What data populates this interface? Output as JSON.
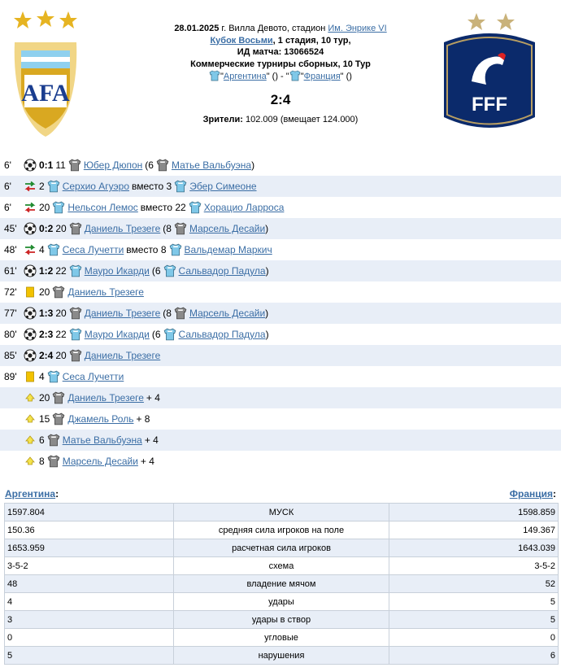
{
  "header": {
    "date": "28.01.2025",
    "venue_prefix": " г. Вилла Девото, стадион ",
    "stadium": "Им. Энрике VI",
    "tournament": "Кубок Восьми",
    "stage": ", 1 стадия, 10 тур,",
    "match_id": "ИД матча: 13066524",
    "series": "Коммерческие турниры сборных, 10 Тур",
    "home_team": "Аргентина",
    "away_team": "Франция",
    "home_suffix": "\" () - \"",
    "away_suffix": "\" ()",
    "quote": "\"",
    "score": "2:4",
    "spectators_label": "Зрители:",
    "spectators_value": " 102.009 (вмещает 124.000)"
  },
  "colors": {
    "link": "#3b6ea5",
    "row_shade": "#e8eef7",
    "home_shirt": "#7fc8e8",
    "away_shirt": "#8a8a8a"
  },
  "events": [
    {
      "min": "6'",
      "icon": "ball-icon",
      "score": "0:1",
      "num": "11",
      "player": "Юбер Дюпон",
      "extra": "(6",
      "assist": "Матье Вальбуэна",
      "close": ")"
    },
    {
      "min": "6'",
      "icon": "substitution-icon",
      "num": "2",
      "player": "Серхио Агуэро",
      "extra": "вместо 3",
      "assist": "Эбер Симеоне"
    },
    {
      "min": "6'",
      "icon": "substitution-icon",
      "num": "20",
      "player": "Нельсон Лемос",
      "extra": "вместо 22",
      "assist": "Хорацио Ларроса"
    },
    {
      "min": "45'",
      "icon": "ball-icon",
      "score": "0:2",
      "num": "20",
      "player": "Даниель Трезеге",
      "extra": "(8",
      "assist": "Марсель Десайи",
      "close": ")"
    },
    {
      "min": "48'",
      "icon": "substitution-icon",
      "num": "4",
      "player": "Сеса Лучетти",
      "extra": "вместо 8",
      "assist": "Вальдемар Маркич"
    },
    {
      "min": "61'",
      "icon": "ball-icon",
      "score": "1:2",
      "num": "22",
      "player": "Мауро Икарди",
      "extra": "(6",
      "assist": "Сальвадор Падула",
      "close": ")"
    },
    {
      "min": "72'",
      "icon": "yellow-card-icon",
      "num": "20",
      "player": "Даниель Трезеге"
    },
    {
      "min": "77'",
      "icon": "ball-icon",
      "score": "1:3",
      "num": "20",
      "player": "Даниель Трезеге",
      "extra": "(8",
      "assist": "Марсель Десайи",
      "close": ")"
    },
    {
      "min": "80'",
      "icon": "ball-icon",
      "score": "2:3",
      "num": "22",
      "player": "Мауро Икарди",
      "extra": "(6",
      "assist": "Сальвадор Падула",
      "close": ")"
    },
    {
      "min": "85'",
      "icon": "ball-icon",
      "score": "2:4",
      "num": "20",
      "player": "Даниель Трезеге"
    },
    {
      "min": "89'",
      "icon": "yellow-card-icon",
      "num": "4",
      "player": "Сеса Лучетти"
    },
    {
      "min": "",
      "icon": "arrow-up-icon",
      "num": "20",
      "player": "Даниель Трезеге",
      "extra": "+ 4"
    },
    {
      "min": "",
      "icon": "arrow-up-icon",
      "num": "15",
      "player": "Джамель Роль",
      "extra": "+ 8"
    },
    {
      "min": "",
      "icon": "arrow-up-icon",
      "num": "6",
      "player": "Матье Вальбуэна",
      "extra": "+ 4"
    },
    {
      "min": "",
      "icon": "arrow-up-icon",
      "num": "8",
      "player": "Марсель Десайи",
      "extra": "+ 4"
    }
  ],
  "stats": {
    "home_label": "Аргентина",
    "away_label": "Франция",
    "colon": ":",
    "rows": [
      {
        "home": "1597.804",
        "name": "МУСК",
        "away": "1598.859"
      },
      {
        "home": "150.36",
        "name": "средняя сила игроков на поле",
        "away": "149.367"
      },
      {
        "home": "1653.959",
        "name": "расчетная сила игроков",
        "away": "1643.039"
      },
      {
        "home": "3-5-2",
        "name": "схема",
        "away": "3-5-2"
      },
      {
        "home": "48",
        "name": "владение мячом",
        "away": "52"
      },
      {
        "home": "4",
        "name": "удары",
        "away": "5"
      },
      {
        "home": "3",
        "name": "удары в створ",
        "away": "5"
      },
      {
        "home": "0",
        "name": "угловые",
        "away": "0"
      },
      {
        "home": "5",
        "name": "нарушения",
        "away": "6"
      }
    ]
  }
}
